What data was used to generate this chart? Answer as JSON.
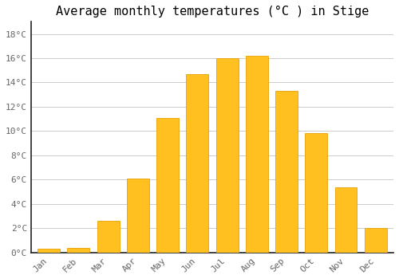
{
  "title": "Average monthly temperatures (°C ) in Stige",
  "months": [
    "Jan",
    "Feb",
    "Mar",
    "Apr",
    "May",
    "Jun",
    "Jul",
    "Aug",
    "Sep",
    "Oct",
    "Nov",
    "Dec"
  ],
  "values": [
    0.3,
    0.4,
    2.6,
    6.1,
    11.1,
    14.7,
    16.0,
    16.2,
    13.3,
    9.8,
    5.4,
    2.0
  ],
  "bar_color": "#FFC020",
  "bar_edge_color": "#E8A000",
  "background_color": "#FFFFFF",
  "grid_color": "#CCCCCC",
  "ytick_labels": [
    "0°C",
    "2°C",
    "4°C",
    "6°C",
    "8°C",
    "10°C",
    "12°C",
    "14°C",
    "16°C",
    "18°C"
  ],
  "ytick_values": [
    0,
    2,
    4,
    6,
    8,
    10,
    12,
    14,
    16,
    18
  ],
  "ylim": [
    0,
    19
  ],
  "title_fontsize": 11,
  "tick_fontsize": 8,
  "font_family": "monospace",
  "bar_width": 0.75
}
